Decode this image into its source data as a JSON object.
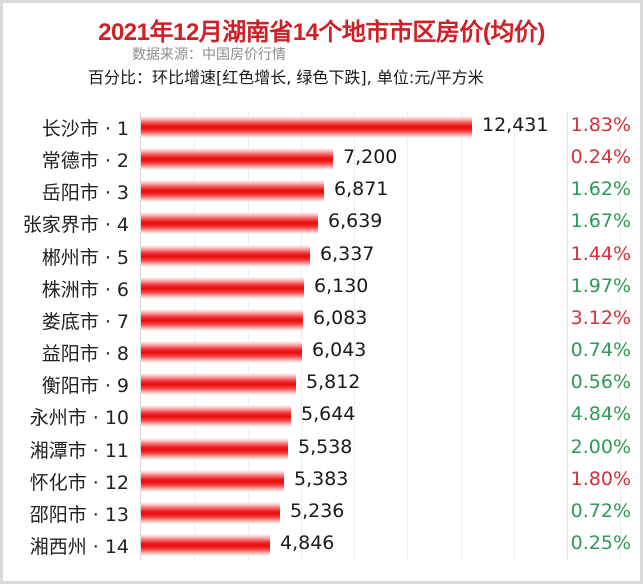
{
  "header": {
    "title": "2021年12月湖南省14个地市市区房价(均价)",
    "source": "数据来源：中国房价行情",
    "note": "百分比：环比增速[红色增长, 绿色下跌], 单位:元/平方米"
  },
  "colors": {
    "title": "#cf2027",
    "bar": "#ea0f0f",
    "increase": "#d0323c",
    "decrease": "#2e9a58"
  },
  "chart_data": {
    "type": "bar",
    "orientation": "horizontal",
    "title": "2021年12月湖南省14个地市市区房价(均价)",
    "subtitle": "数据来源：中国房价行情",
    "annotation": "百分比：环比增速[红色增长, 绿色下跌], 单位:元/平方米",
    "xlabel": "",
    "ylabel": "",
    "xlim": [
      0,
      18000
    ],
    "grid": true,
    "grid_step": 2000,
    "unit": "元/平方米",
    "categories": [
      "长沙市 · 1",
      "常德市 · 2",
      "岳阳市 · 3",
      "张家界市 · 4",
      "郴州市 · 5",
      "株洲市 · 6",
      "娄底市 · 7",
      "益阳市 · 8",
      "衡阳市 · 9",
      "永州市 · 10",
      "湘潭市 · 11",
      "怀化市 · 12",
      "邵阳市 · 13",
      "湘西州 · 14"
    ],
    "series": [
      {
        "name": "均价",
        "values": [
          12431,
          7200,
          6871,
          6639,
          6337,
          6130,
          6083,
          6043,
          5812,
          5644,
          5538,
          5383,
          5236,
          4846
        ]
      },
      {
        "name": "环比增速(%)",
        "values": [
          1.83,
          0.24,
          1.62,
          1.67,
          1.44,
          1.97,
          3.12,
          0.74,
          0.56,
          4.84,
          2.0,
          1.8,
          0.72,
          0.25
        ],
        "direction": [
          "up",
          "up",
          "down",
          "down",
          "up",
          "down",
          "up",
          "down",
          "down",
          "down",
          "down",
          "up",
          "down",
          "down"
        ]
      }
    ],
    "rows": [
      {
        "label": "长沙市 · 1",
        "value": 12431,
        "value_text": "12,431",
        "pct": "1.83%",
        "trend": "up"
      },
      {
        "label": "常德市 · 2",
        "value": 7200,
        "value_text": "7,200",
        "pct": "0.24%",
        "trend": "up"
      },
      {
        "label": "岳阳市 · 3",
        "value": 6871,
        "value_text": "6,871",
        "pct": "1.62%",
        "trend": "down"
      },
      {
        "label": "张家界市 · 4",
        "value": 6639,
        "value_text": "6,639",
        "pct": "1.67%",
        "trend": "down"
      },
      {
        "label": "郴州市 · 5",
        "value": 6337,
        "value_text": "6,337",
        "pct": "1.44%",
        "trend": "up"
      },
      {
        "label": "株洲市 · 6",
        "value": 6130,
        "value_text": "6,130",
        "pct": "1.97%",
        "trend": "down"
      },
      {
        "label": "娄底市 · 7",
        "value": 6083,
        "value_text": "6,083",
        "pct": "3.12%",
        "trend": "up"
      },
      {
        "label": "益阳市 · 8",
        "value": 6043,
        "value_text": "6,043",
        "pct": "0.74%",
        "trend": "down"
      },
      {
        "label": "衡阳市 · 9",
        "value": 5812,
        "value_text": "5,812",
        "pct": "0.56%",
        "trend": "down"
      },
      {
        "label": "永州市 · 10",
        "value": 5644,
        "value_text": "5,644",
        "pct": "4.84%",
        "trend": "down"
      },
      {
        "label": "湘潭市 · 11",
        "value": 5538,
        "value_text": "5,538",
        "pct": "2.00%",
        "trend": "down"
      },
      {
        "label": "怀化市 · 12",
        "value": 5383,
        "value_text": "5,383",
        "pct": "1.80%",
        "trend": "up"
      },
      {
        "label": "邵阳市 · 13",
        "value": 5236,
        "value_text": "5,236",
        "pct": "0.72%",
        "trend": "down"
      },
      {
        "label": "湘西州 · 14",
        "value": 4846,
        "value_text": "4,846",
        "pct": "0.25%",
        "trend": "down"
      }
    ]
  }
}
